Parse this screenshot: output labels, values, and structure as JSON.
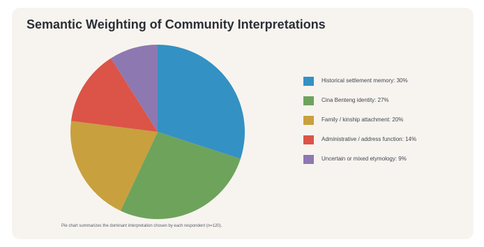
{
  "title": "Semantic Weighting of Community Interpretations",
  "footnote": "Pie chart summarizes the dominant interpretation chosen by each respondent (n=120).",
  "chart_data": {
    "type": "pie",
    "title": "Semantic Weighting of Community Interpretations",
    "start_angle_deg": 0,
    "direction": "clockwise from 12 o'clock",
    "legend_position": "right",
    "slices": [
      {
        "label": "Historical settlement memory",
        "value": 30,
        "display_label": "Historical settlement memory: 30%",
        "color": "#3491c3"
      },
      {
        "label": "Cina Benteng identity",
        "value": 27,
        "display_label": "Cina Benteng identity: 27%",
        "color": "#6ea35c"
      },
      {
        "label": "Family / kinship attachment",
        "value": 20,
        "display_label": "Family / kinship attachment: 20%",
        "color": "#c9a03e"
      },
      {
        "label": "Administrative / address function",
        "value": 14,
        "display_label": "Administrative / address function: 14%",
        "color": "#db5447"
      },
      {
        "label": "Uncertain or mixed etymology",
        "value": 9,
        "display_label": "Uncertain or mixed etymology: 9%",
        "color": "#8e78b1"
      }
    ]
  }
}
